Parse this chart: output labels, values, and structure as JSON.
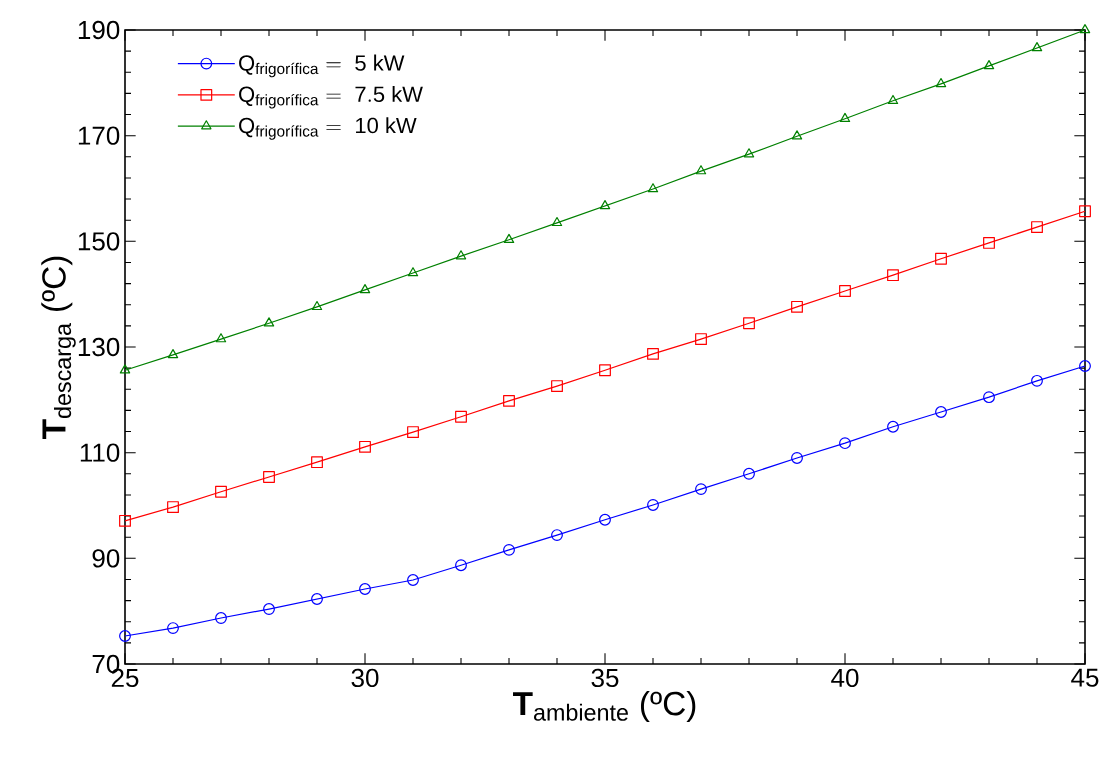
{
  "chart_data": {
    "type": "line",
    "xlabel": "**T**$_{ambiente}$ (ºC)",
    "ylabel": "**T**$_{descarga}$ (ºC)",
    "x": [
      25,
      26,
      27,
      28,
      29,
      30,
      31,
      32,
      33,
      34,
      35,
      36,
      37,
      38,
      39,
      40,
      41,
      42,
      43,
      44,
      45
    ],
    "series": [
      {
        "name": "\\mathrm{Q}_{\\mathrm{frigorífica}}\\mathrm{\\ =\\ 5\\ kW}",
        "color": "#0000ff",
        "marker": "circle",
        "values": [
          75.3,
          76.8,
          78.7,
          80.4,
          82.3,
          84.2,
          85.9,
          88.7,
          91.6,
          94.4,
          97.3,
          100.1,
          103.1,
          106.0,
          109.0,
          111.8,
          114.9,
          117.7,
          120.5,
          123.6,
          126.4
        ]
      },
      {
        "name": "\\mathrm{Q}_{\\mathrm{frigorífica}}\\mathrm{\\ =\\ 7.5\\ kW}",
        "color": "#ff0000",
        "marker": "square",
        "values": [
          97.1,
          99.7,
          102.6,
          105.4,
          108.2,
          111.1,
          113.9,
          116.8,
          119.8,
          122.6,
          125.6,
          128.7,
          131.5,
          134.5,
          137.6,
          140.6,
          143.6,
          146.7,
          149.7,
          152.7,
          155.7
        ]
      },
      {
        "name": "\\mathrm{Q}_{\\mathrm{frigorífica}}\\mathrm{\\ =\\ 10\\ kW}",
        "color": "#008000",
        "marker": "triangle",
        "values": [
          125.6,
          128.5,
          131.5,
          134.5,
          137.6,
          140.8,
          144.0,
          147.2,
          150.3,
          153.5,
          156.7,
          159.9,
          163.3,
          166.5,
          169.9,
          173.2,
          176.6,
          179.8,
          183.2,
          186.6,
          190.0
        ]
      }
    ],
    "xlim": [
      25,
      45
    ],
    "ylim": [
      70,
      190
    ],
    "xticks": [
      25,
      30,
      35,
      40,
      45
    ],
    "yticks": [
      70,
      90,
      110,
      130,
      150,
      170,
      190
    ],
    "grid": false,
    "legend": "top left"
  }
}
